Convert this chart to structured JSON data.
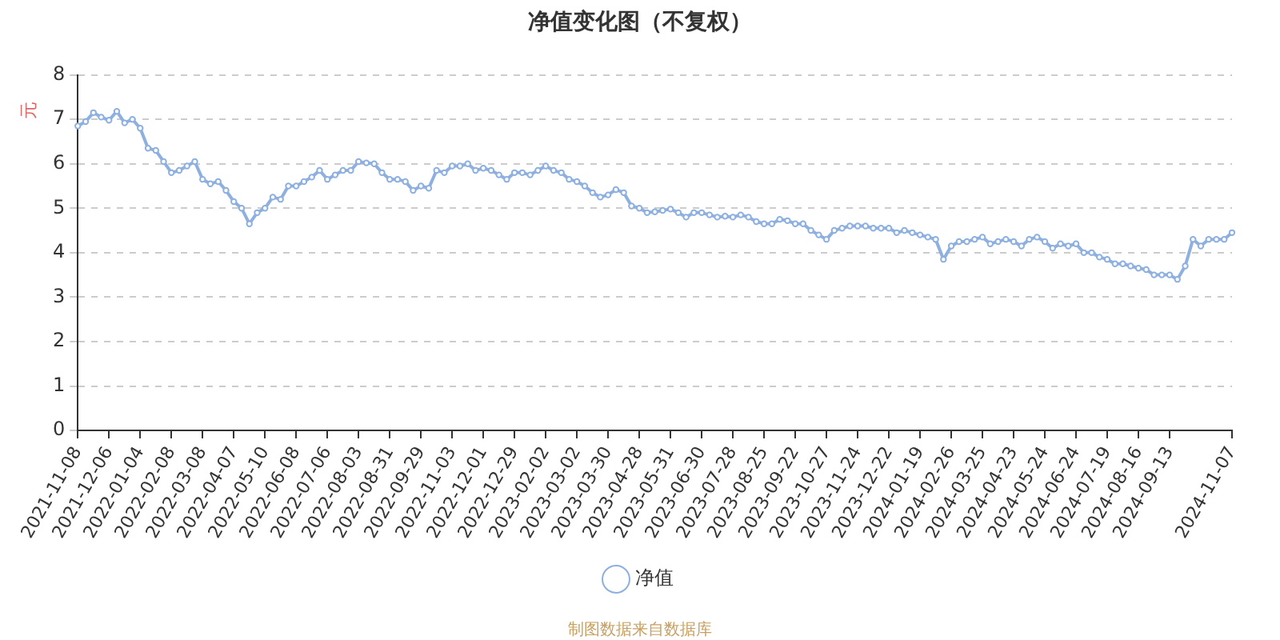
{
  "chart_data": {
    "type": "line",
    "title": "净值变化图（不复权）",
    "ylabel": "元",
    "categories": [
      "2021-11-08",
      null,
      null,
      null,
      "2021-12-06",
      null,
      null,
      null,
      "2022-01-04",
      null,
      null,
      null,
      "2022-02-08",
      null,
      null,
      null,
      "2022-03-08",
      null,
      null,
      null,
      "2022-04-07",
      null,
      null,
      null,
      "2022-05-10",
      null,
      null,
      null,
      "2022-06-08",
      null,
      null,
      null,
      "2022-07-06",
      null,
      null,
      null,
      "2022-08-03",
      null,
      null,
      null,
      "2022-08-31",
      null,
      null,
      null,
      "2022-09-29",
      null,
      null,
      null,
      "2022-11-03",
      null,
      null,
      null,
      "2022-12-01",
      null,
      null,
      null,
      "2022-12-29",
      null,
      null,
      null,
      "2023-02-02",
      null,
      null,
      null,
      "2023-03-02",
      null,
      null,
      null,
      "2023-03-30",
      null,
      null,
      null,
      "2023-04-28",
      null,
      null,
      null,
      "2023-05-31",
      null,
      null,
      null,
      "2023-06-30",
      null,
      null,
      null,
      "2023-07-28",
      null,
      null,
      null,
      "2023-08-25",
      null,
      null,
      null,
      "2023-09-22",
      null,
      null,
      null,
      "2023-10-27",
      null,
      null,
      null,
      "2023-11-24",
      null,
      null,
      null,
      "2023-12-22",
      null,
      null,
      null,
      "2024-01-19",
      null,
      null,
      null,
      "2024-02-26",
      null,
      null,
      null,
      "2024-03-25",
      null,
      null,
      null,
      "2024-04-23",
      null,
      null,
      null,
      "2024-05-24",
      null,
      null,
      null,
      "2024-06-24",
      null,
      null,
      null,
      "2024-07-19",
      null,
      null,
      null,
      "2024-08-16",
      null,
      null,
      null,
      "2024-09-13",
      null,
      null,
      null,
      null,
      null,
      null,
      null,
      "2024-11-07"
    ],
    "series": [
      {
        "name": "净值",
        "color": "#8eb0e0",
        "values": [
          6.85,
          6.95,
          7.15,
          7.05,
          6.98,
          7.18,
          6.92,
          7.0,
          6.8,
          6.35,
          6.3,
          6.05,
          5.8,
          5.85,
          5.95,
          6.05,
          5.65,
          5.55,
          5.6,
          5.4,
          5.15,
          5.0,
          4.65,
          4.9,
          5.0,
          5.25,
          5.2,
          5.5,
          5.5,
          5.6,
          5.7,
          5.85,
          5.65,
          5.75,
          5.85,
          5.85,
          6.05,
          6.02,
          6.0,
          5.8,
          5.65,
          5.65,
          5.6,
          5.4,
          5.5,
          5.45,
          5.85,
          5.8,
          5.95,
          5.95,
          6.0,
          5.85,
          5.9,
          5.85,
          5.75,
          5.65,
          5.8,
          5.8,
          5.75,
          5.85,
          5.95,
          5.85,
          5.8,
          5.65,
          5.6,
          5.5,
          5.35,
          5.25,
          5.3,
          5.42,
          5.35,
          5.05,
          5.0,
          4.9,
          4.92,
          4.95,
          4.98,
          4.9,
          4.8,
          4.9,
          4.9,
          4.85,
          4.8,
          4.82,
          4.8,
          4.85,
          4.8,
          4.7,
          4.65,
          4.65,
          4.75,
          4.72,
          4.65,
          4.65,
          4.5,
          4.4,
          4.3,
          4.5,
          4.55,
          4.6,
          4.6,
          4.6,
          4.55,
          4.55,
          4.55,
          4.45,
          4.5,
          4.45,
          4.4,
          4.35,
          4.3,
          3.85,
          4.15,
          4.25,
          4.25,
          4.3,
          4.35,
          4.2,
          4.25,
          4.3,
          4.25,
          4.15,
          4.3,
          4.35,
          4.25,
          4.1,
          4.2,
          4.15,
          4.2,
          4.0,
          4.0,
          3.9,
          3.85,
          3.75,
          3.75,
          3.7,
          3.65,
          3.62,
          3.5,
          3.5,
          3.5,
          3.4,
          3.7,
          4.3,
          4.15,
          4.3,
          4.3,
          4.3,
          4.45
        ]
      }
    ],
    "ylim": [
      0,
      8
    ],
    "yticks": [
      0,
      1,
      2,
      3,
      4,
      5,
      6,
      7,
      8
    ],
    "grid": "y",
    "legend": "bottom",
    "marker": "circle",
    "annotations": [
      "制图数据来自数据库"
    ]
  }
}
